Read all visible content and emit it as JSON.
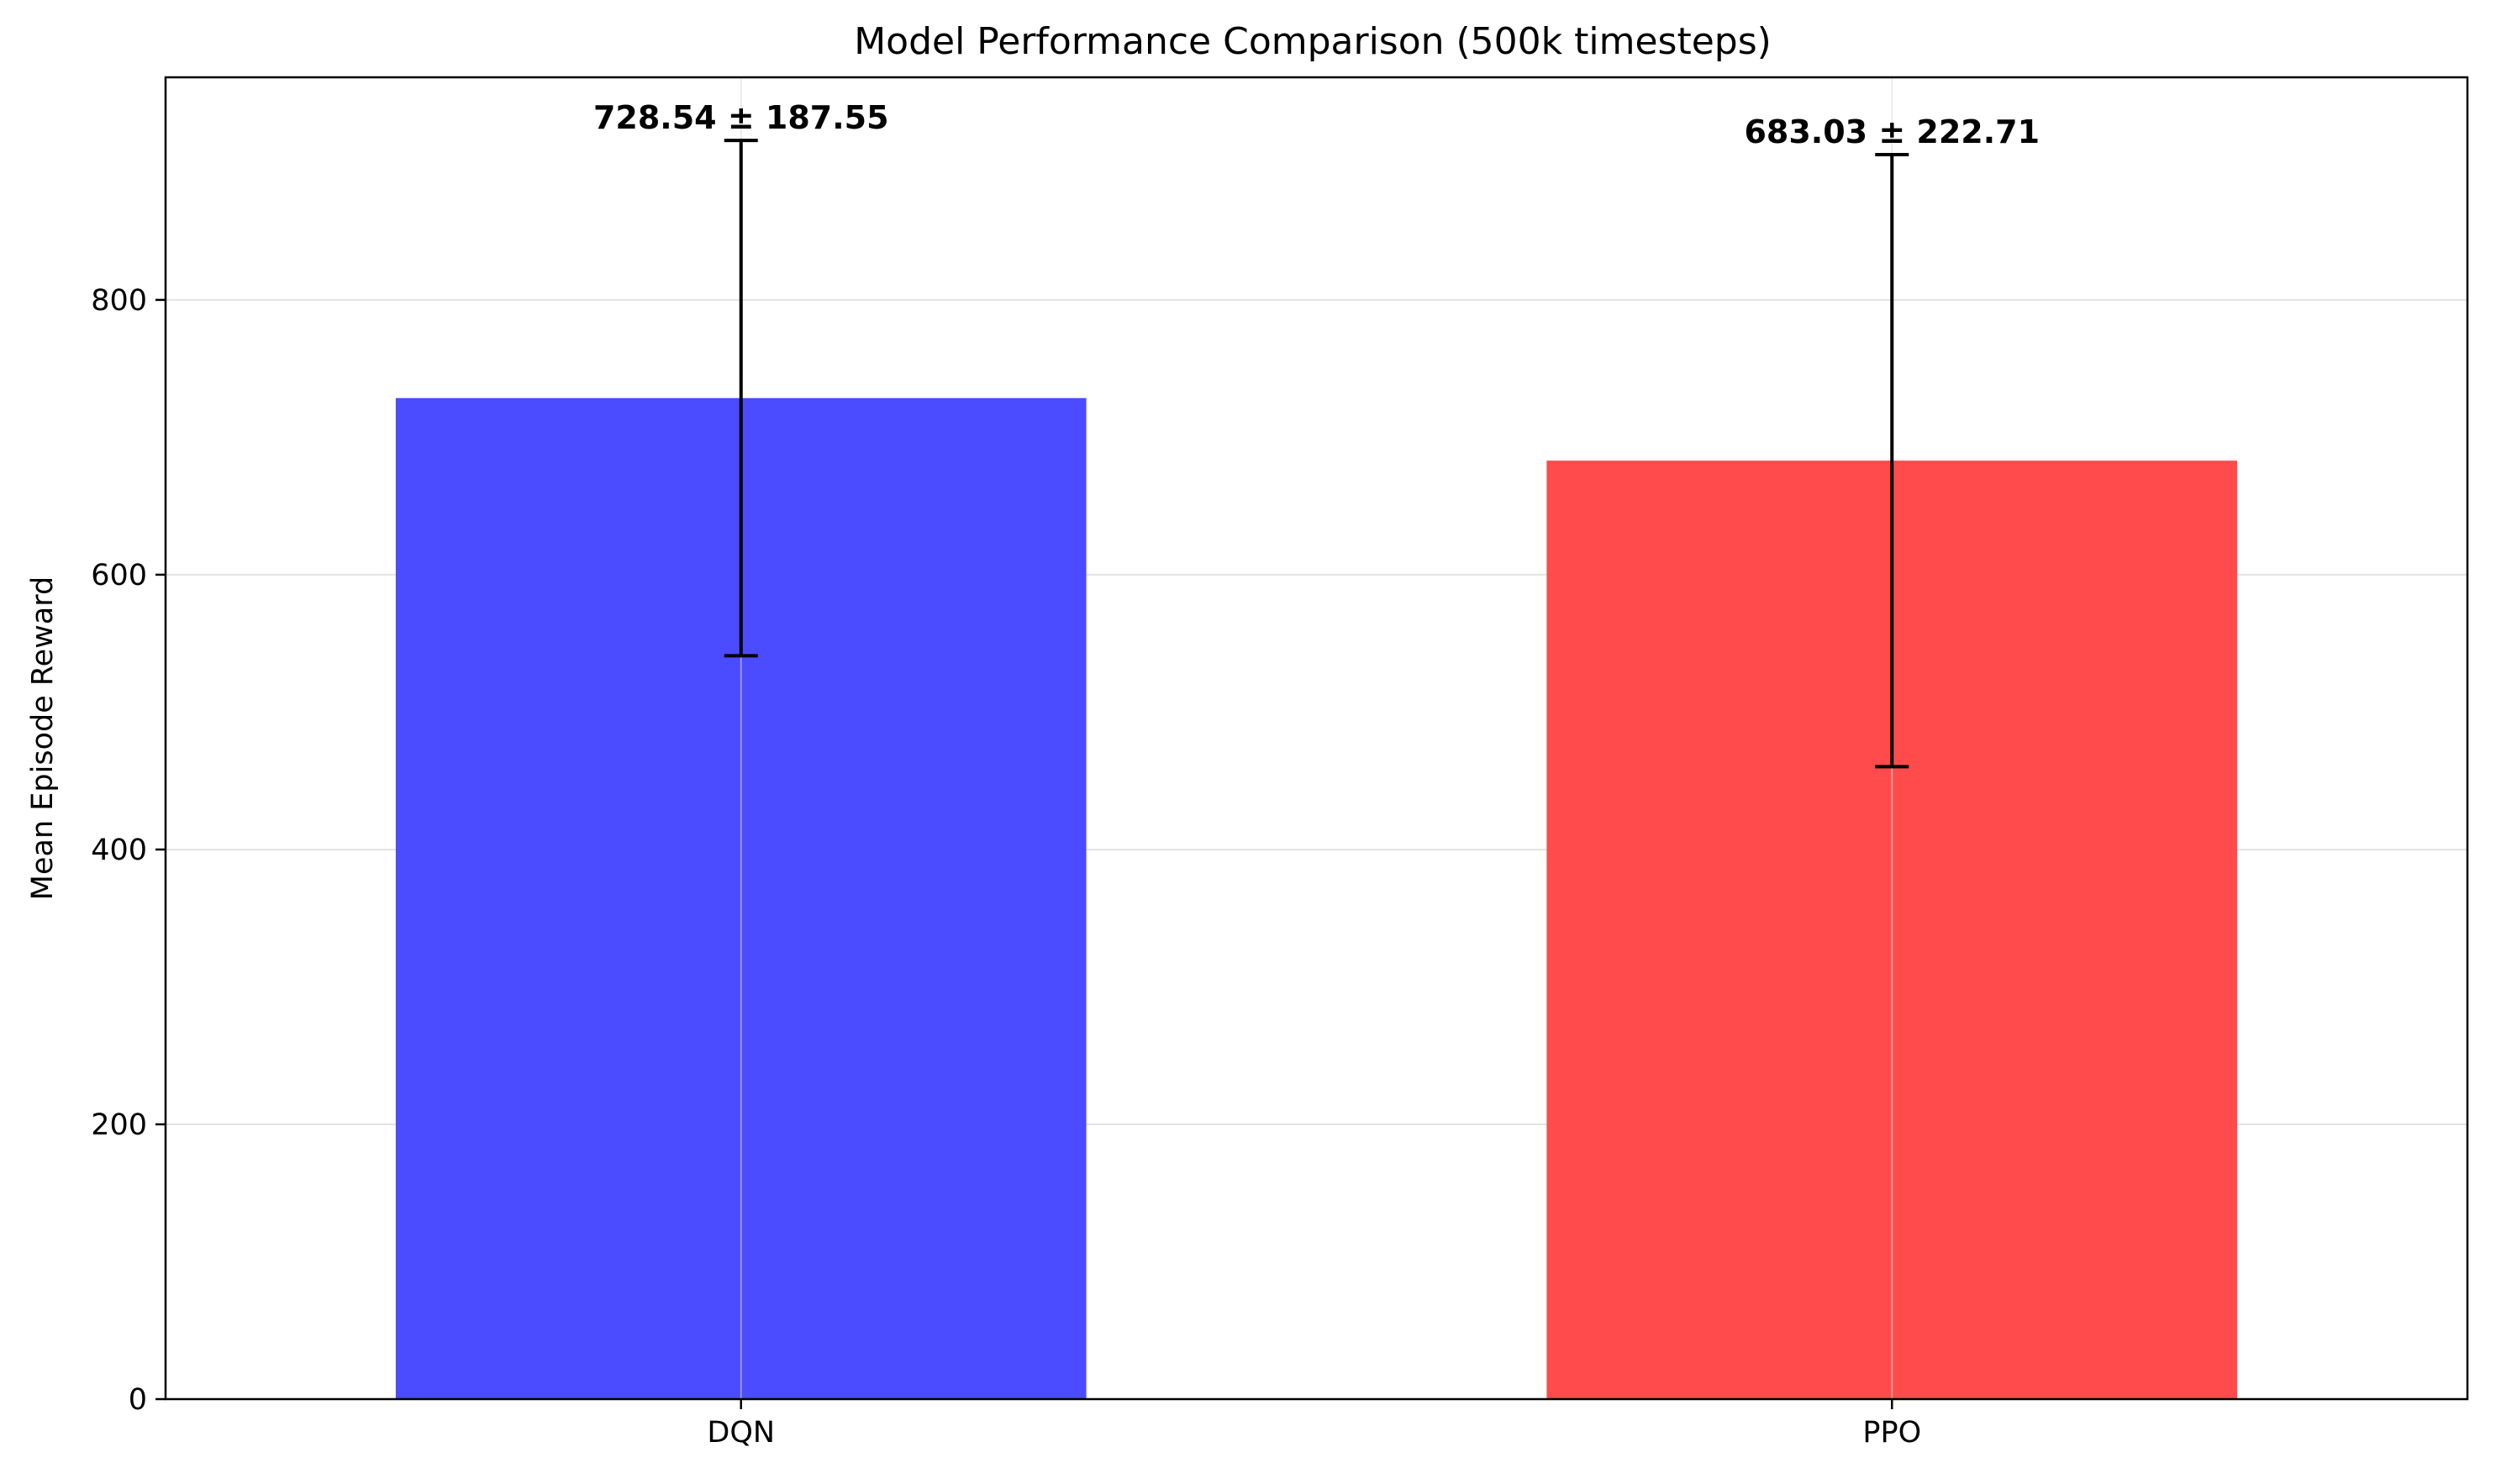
{
  "chart_data": {
    "type": "bar",
    "title": "Model Performance Comparison (500k timesteps)",
    "xlabel": "",
    "ylabel": "Mean Episode Reward",
    "categories": [
      "DQN",
      "PPO"
    ],
    "values": [
      728.54,
      683.03
    ],
    "errors": [
      187.55,
      222.71
    ],
    "data_labels": [
      "728.54 ± 187.55",
      "683.03 ± 222.71"
    ],
    "colors": [
      "#4b4bff",
      "#ff4b4b"
    ],
    "ylim": [
      0,
      962
    ],
    "yticks": [
      0,
      200,
      400,
      600,
      800
    ],
    "grid": true
  }
}
